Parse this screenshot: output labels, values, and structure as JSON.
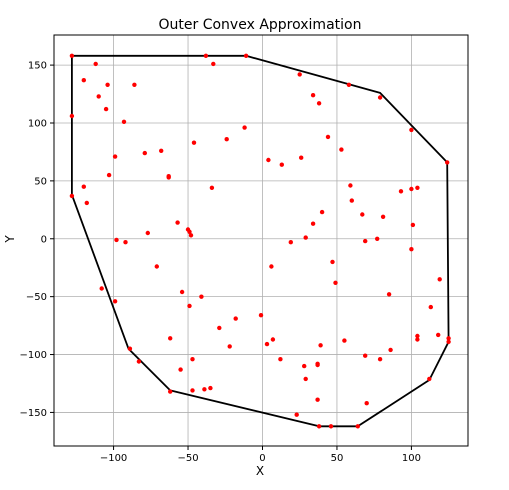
{
  "chart_data": {
    "type": "scatter",
    "title": "Outer Convex Approximation",
    "xlabel": "X",
    "ylabel": "Y",
    "xlim": [
      -140,
      138
    ],
    "ylim": [
      -179,
      176
    ],
    "xticks": [
      -100,
      -50,
      0,
      50,
      100
    ],
    "yticks": [
      -150,
      -100,
      -50,
      0,
      50,
      100,
      150
    ],
    "xtick_labels": [
      "−100",
      "−50",
      "0",
      "50",
      "100"
    ],
    "ytick_labels": [
      "−150",
      "−100",
      "−50",
      "0",
      "50",
      "100",
      "150"
    ],
    "grid": true,
    "colors": {
      "points": "#ff0000",
      "hull": "#000000",
      "grid": "#b0b0b0"
    },
    "series": [
      {
        "type": "scatter",
        "values": [
          [
            -128,
            158
          ],
          [
            -128,
            106
          ],
          [
            -120,
            137
          ],
          [
            -112,
            151
          ],
          [
            -104,
            133
          ],
          [
            -110,
            123
          ],
          [
            -105,
            112
          ],
          [
            -86,
            133
          ],
          [
            -38,
            158
          ],
          [
            -11,
            158
          ],
          [
            -33,
            151
          ],
          [
            -93,
            101
          ],
          [
            -99,
            71
          ],
          [
            -103,
            55
          ],
          [
            -79,
            74
          ],
          [
            -68,
            76
          ],
          [
            -63,
            54
          ],
          [
            -63,
            53
          ],
          [
            -46,
            83
          ],
          [
            -24,
            86
          ],
          [
            -12,
            96
          ],
          [
            25,
            142
          ],
          [
            34,
            124
          ],
          [
            38,
            117
          ],
          [
            44,
            88
          ],
          [
            53,
            77
          ],
          [
            58,
            133
          ],
          [
            79,
            122
          ],
          [
            100,
            94
          ],
          [
            124,
            66
          ],
          [
            -34,
            44
          ],
          [
            4,
            68
          ],
          [
            13,
            64
          ],
          [
            26,
            70
          ],
          [
            -120,
            45
          ],
          [
            -118,
            31
          ],
          [
            -98,
            -1
          ],
          [
            -92,
            -3
          ],
          [
            -77,
            5
          ],
          [
            -57,
            14
          ],
          [
            -50,
            8
          ],
          [
            -49,
            6
          ],
          [
            -48,
            3
          ],
          [
            -71,
            -24
          ],
          [
            19,
            -3
          ],
          [
            29,
            1
          ],
          [
            34,
            13
          ],
          [
            40,
            23
          ],
          [
            59,
            46
          ],
          [
            60,
            33
          ],
          [
            67,
            21
          ],
          [
            69,
            -2
          ],
          [
            77,
            0
          ],
          [
            81,
            19
          ],
          [
            93,
            41
          ],
          [
            100,
            43
          ],
          [
            104,
            44
          ],
          [
            101,
            12
          ],
          [
            100,
            -9
          ],
          [
            6,
            -24
          ],
          [
            47,
            -20
          ],
          [
            49,
            -38
          ],
          [
            -128,
            37
          ],
          [
            -108,
            -43
          ],
          [
            -99,
            -54
          ],
          [
            -54,
            -46
          ],
          [
            -41,
            -50
          ],
          [
            -49,
            -58
          ],
          [
            -18,
            -69
          ],
          [
            -29,
            -77
          ],
          [
            -62,
            -86
          ],
          [
            -22,
            -93
          ],
          [
            -1,
            -66
          ],
          [
            3,
            -91
          ],
          [
            7,
            -87
          ],
          [
            12,
            -104
          ],
          [
            39,
            -92
          ],
          [
            55,
            -88
          ],
          [
            85,
            -48
          ],
          [
            113,
            -59
          ],
          [
            119,
            -35
          ],
          [
            118,
            -83
          ],
          [
            104,
            -84
          ],
          [
            104,
            -87
          ],
          [
            125,
            -86
          ],
          [
            125,
            -89
          ],
          [
            -89,
            -95
          ],
          [
            -83,
            -106
          ],
          [
            -55,
            -113
          ],
          [
            -47,
            -104
          ],
          [
            -39,
            -130
          ],
          [
            -47,
            -131
          ],
          [
            -35,
            -129
          ],
          [
            -62,
            -132
          ],
          [
            28,
            -110
          ],
          [
            37,
            -109
          ],
          [
            37,
            -108
          ],
          [
            69,
            -101
          ],
          [
            79,
            -104
          ],
          [
            86,
            -96
          ],
          [
            29,
            -121
          ],
          [
            37,
            -139
          ],
          [
            23,
            -152
          ],
          [
            70,
            -142
          ],
          [
            112,
            -121
          ],
          [
            38,
            -162
          ],
          [
            46,
            -162
          ],
          [
            64,
            -162
          ]
        ]
      },
      {
        "type": "line",
        "values": [
          [
            -128,
            158
          ],
          [
            -11,
            158
          ],
          [
            79,
            126
          ],
          [
            124,
            66
          ],
          [
            125,
            -89
          ],
          [
            112,
            -122
          ],
          [
            64,
            -162
          ],
          [
            38,
            -162
          ],
          [
            -62,
            -131
          ],
          [
            -90,
            -95
          ],
          [
            -128,
            38
          ],
          [
            -128,
            158
          ]
        ]
      }
    ]
  }
}
